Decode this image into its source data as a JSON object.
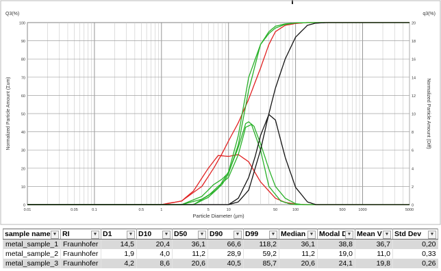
{
  "chart_data": {
    "type": "line",
    "xscale": "log",
    "xlabel": "Particle Diameter (µm)",
    "ylabel_left": "Normalized Particle Amount (Σum)",
    "ylabel_right": "Normalized Particle Amount (Diff)",
    "left_axis_title": "Q3(%)",
    "right_axis_title": "q3(%)",
    "xlim": [
      0.01,
      5000
    ],
    "ylim_left": [
      0,
      100
    ],
    "ylim_right": [
      0,
      20
    ],
    "x_ticks": [
      {
        "v": 0.01,
        "label": "0.01"
      },
      {
        "v": 0.05,
        "label": "0.05"
      },
      {
        "v": 0.1,
        "label": "0.1"
      },
      {
        "v": 0.5,
        "label": "0.5"
      },
      {
        "v": 1,
        "label": "1"
      },
      {
        "v": 5,
        "label": "5"
      },
      {
        "v": 10,
        "label": "10"
      },
      {
        "v": 50,
        "label": "50"
      },
      {
        "v": 100,
        "label": "100"
      },
      {
        "v": 500,
        "label": "500"
      },
      {
        "v": 1000,
        "label": "1000"
      },
      {
        "v": 5000,
        "label": "5000"
      }
    ],
    "y_left_ticks": [
      "0",
      "10",
      "20",
      "30",
      "40",
      "50",
      "60",
      "70",
      "80",
      "90",
      "100"
    ],
    "y_right_ticks": [
      "0",
      "2",
      "4",
      "6",
      "8",
      "10",
      "12",
      "14",
      "16",
      "18",
      "20"
    ],
    "grid": true,
    "series": [
      {
        "color": "#e02020",
        "axis": "left",
        "x": [
          1,
          2,
          4,
          6,
          8,
          10,
          14,
          20,
          30,
          40,
          50,
          70,
          100,
          150
        ],
        "y": [
          0,
          2,
          10,
          20,
          28,
          35,
          45,
          58,
          75,
          88,
          95,
          98.5,
          99.5,
          100
        ]
      },
      {
        "color": "#e02020",
        "axis": "right",
        "x": [
          1,
          2,
          3,
          5,
          7,
          10,
          14,
          20,
          30,
          50,
          70,
          100,
          150
        ],
        "y": [
          0,
          0.4,
          1.5,
          4.0,
          5.4,
          5.3,
          5.5,
          4.7,
          2.5,
          0.7,
          0.25,
          0.05,
          0
        ]
      },
      {
        "color": "#28b028",
        "axis": "left",
        "x": [
          2,
          4,
          6,
          8,
          10,
          14,
          20,
          30,
          40,
          50,
          70,
          100,
          150
        ],
        "y": [
          0,
          3,
          7,
          11,
          17,
          33,
          63,
          88,
          95,
          98,
          99.3,
          99.8,
          100
        ]
      },
      {
        "color": "#28b028",
        "axis": "right",
        "x": [
          2,
          4,
          6,
          8,
          10,
          14,
          18,
          20,
          24,
          30,
          40,
          50,
          70,
          100,
          130
        ],
        "y": [
          0,
          0.9,
          2.2,
          2.8,
          3.5,
          6.3,
          8.9,
          9.1,
          8.6,
          6.7,
          3.9,
          2.0,
          0.7,
          0.1,
          0
        ]
      },
      {
        "color": "#28b028",
        "axis": "left",
        "x": [
          3,
          5,
          7,
          10,
          14,
          20,
          30,
          40,
          50,
          70,
          100,
          150
        ],
        "y": [
          0,
          4,
          9,
          18,
          38,
          70,
          88,
          94,
          97,
          99,
          99.8,
          100
        ]
      },
      {
        "color": "#28b028",
        "axis": "right",
        "x": [
          3,
          5,
          7,
          10,
          14,
          18,
          22,
          30,
          40,
          60,
          80,
          100
        ],
        "y": [
          0,
          1.0,
          2.0,
          3.0,
          5.5,
          8.5,
          8.8,
          6.0,
          2.0,
          0.4,
          0.1,
          0
        ]
      },
      {
        "color": "#111111",
        "axis": "left",
        "x": [
          10,
          14,
          20,
          30,
          40,
          50,
          70,
          100,
          150,
          200,
          300
        ],
        "y": [
          0,
          1.5,
          8,
          30,
          50,
          64,
          80,
          92,
          98.5,
          99.7,
          100
        ]
      },
      {
        "color": "#111111",
        "axis": "right",
        "x": [
          10,
          14,
          20,
          25,
          30,
          40,
          50,
          70,
          100,
          150,
          200
        ],
        "y": [
          0,
          0.7,
          3.0,
          5.3,
          7.6,
          9.9,
          9.3,
          5.2,
          1.9,
          0.3,
          0
        ]
      }
    ]
  },
  "table": {
    "headers": [
      "sample name",
      "RI",
      "D1",
      "D10",
      "D50",
      "D90",
      "D99",
      "Median D",
      "Modal D",
      "Mean V",
      "Std Dev"
    ],
    "filter_icon": "filter-dropdown-icon",
    "rows": [
      [
        "metal_sample_1",
        "Fraunhofer",
        "14,5",
        "20,4",
        "36,1",
        "66,6",
        "118,2",
        "36,1",
        "38,8",
        "36,7",
        "0,20"
      ],
      [
        "metal_sample_2",
        "Fraunhofer",
        "1,9",
        "4,0",
        "11,2",
        "28,9",
        "59,2",
        "11,2",
        "19,0",
        "11,0",
        "0,33"
      ],
      [
        "metal_sample_3",
        "Fraunhofer",
        "4,2",
        "8,6",
        "20,6",
        "40,5",
        "85,7",
        "20,6",
        "24,1",
        "19,8",
        "0,26"
      ]
    ]
  }
}
